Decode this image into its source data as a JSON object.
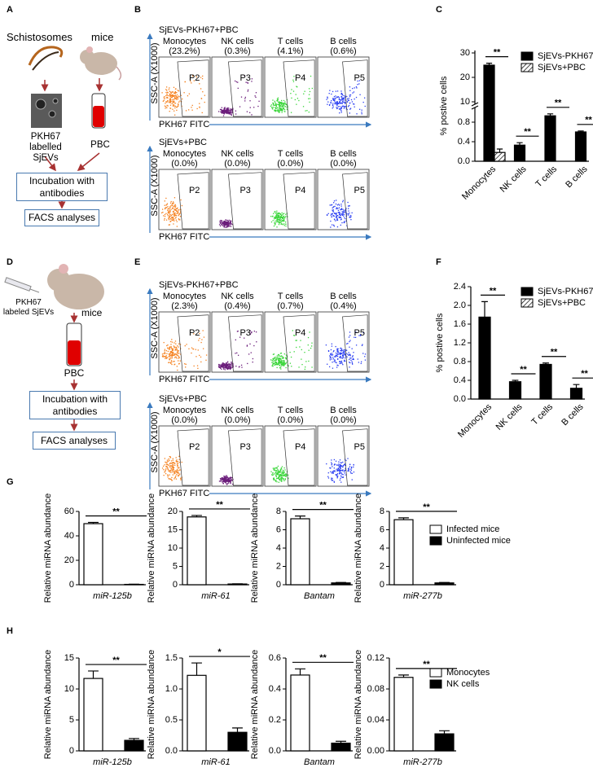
{
  "panel_labels": [
    "A",
    "B",
    "C",
    "D",
    "E",
    "F",
    "G",
    "H"
  ],
  "diagram_a": {
    "schistosomes": "Schistosomes",
    "mice": "mice",
    "evs": "PKH67 labelled SjEVs",
    "pbc": "PBC",
    "step1": "Incubation with antibodies",
    "step2": "FACS analyses"
  },
  "diagram_d": {
    "evs": "PKH67 labeled SjEVs",
    "mice": "mice",
    "pbc": "PBC",
    "step1": "Incubation with antibodies",
    "step2": "FACS analyses"
  },
  "facs_b": {
    "y_axis": "SSC-A (X1000)",
    "x_axis": "PKH67 FITC",
    "cloud_colors": [
      "#f5801e",
      "#6b1d7b",
      "#3ad63a",
      "#2b3ff2"
    ],
    "rows": [
      {
        "title": "SjEVs-PKH67+PBC",
        "plots": [
          {
            "cell": "Monocytes",
            "percent": "(23.2%)",
            "gate": "P2"
          },
          {
            "cell": "NK cells",
            "percent": "(0.3%)",
            "gate": "P3"
          },
          {
            "cell": "T cells",
            "percent": "(4.1%)",
            "gate": "P4"
          },
          {
            "cell": "B cells",
            "percent": "(0.6%)",
            "gate": "P5"
          }
        ]
      },
      {
        "title": "SjEVs+PBC",
        "plots": [
          {
            "cell": "Monocytes",
            "percent": "(0.0%)",
            "gate": "P2"
          },
          {
            "cell": "NK cells",
            "percent": "(0.0%)",
            "gate": "P3"
          },
          {
            "cell": "T cells",
            "percent": "(0.0%)",
            "gate": "P4"
          },
          {
            "cell": "B cells",
            "percent": "(0.0%)",
            "gate": "P5"
          }
        ]
      }
    ]
  },
  "facs_e": {
    "y_axis": "SSC-A (X1000)",
    "x_axis": "PKH67 FITC",
    "cloud_colors": [
      "#f5801e",
      "#6b1d7b",
      "#3ad63a",
      "#2b3ff2"
    ],
    "rows": [
      {
        "title": "SjEVs-PKH67+PBC",
        "plots": [
          {
            "cell": "Monocytes",
            "percent": "(2.3%)",
            "gate": "P2"
          },
          {
            "cell": "NK cells",
            "percent": "(0.4%)",
            "gate": "P3"
          },
          {
            "cell": "T cells",
            "percent": "(0.7%)",
            "gate": "P4"
          },
          {
            "cell": "B cells",
            "percent": "(0.4%)",
            "gate": "P5"
          }
        ]
      },
      {
        "title": "SjEVs+PBC",
        "plots": [
          {
            "cell": "Monocytes",
            "percent": "(0.0%)",
            "gate": "P2"
          },
          {
            "cell": "NK cells",
            "percent": "(0.0%)",
            "gate": "P3"
          },
          {
            "cell": "T cells",
            "percent": "(0.0%)",
            "gate": "P4"
          },
          {
            "cell": "B cells",
            "percent": "(0.0%)",
            "gate": "P5"
          }
        ]
      }
    ]
  },
  "chart_data": [
    {
      "type": "bar",
      "ylabel": "% postive cells",
      "categories": [
        "Monocytes",
        "NK cells",
        "T cells",
        "B cells"
      ],
      "series": [
        {
          "name": "SjEVs-PKH67+PBC",
          "color": "#000000",
          "values": [
            25,
            0.33,
            0.93,
            0.6
          ],
          "errors": [
            0.8,
            0.05,
            0.04,
            0.02
          ]
        },
        {
          "name": "SjEVs+PBC",
          "color": "#ffffff",
          "hatch": true,
          "values": [
            0.18,
            0,
            0,
            0
          ],
          "errors": [
            0.07,
            0,
            0,
            0
          ]
        }
      ],
      "ylim": [
        0,
        31
      ],
      "ybreak": [
        1.1,
        9
      ],
      "yticks": [
        {
          "value": 0,
          "label": "0.0"
        },
        0.4,
        0.8,
        10,
        20,
        30
      ],
      "significance": [
        "**",
        "**",
        "**",
        "**"
      ]
    },
    {
      "type": "bar",
      "ylabel": "% postive cells",
      "categories": [
        "Monocytes",
        "NK cells",
        "T cells",
        "B cells"
      ],
      "series": [
        {
          "name": "SjEVs-PKH67+PBC",
          "color": "#000000",
          "values": [
            1.75,
            0.37,
            0.74,
            0.23
          ],
          "errors": [
            0.33,
            0.03,
            0.03,
            0.08
          ]
        },
        {
          "name": "SjEVs+PBC",
          "color": "#ffffff",
          "hatch": true,
          "values": [
            0,
            0,
            0,
            0
          ],
          "errors": [
            0,
            0,
            0,
            0
          ]
        }
      ],
      "ylim": [
        0,
        2.4
      ],
      "yticks": [
        {
          "value": 0,
          "label": "0.0"
        },
        0.4,
        0.8,
        1.2,
        1.6,
        {
          "value": 2,
          "label": "2.0"
        },
        2.4
      ],
      "significance": [
        "**",
        "**",
        "**",
        "**"
      ]
    },
    {
      "type": "bar",
      "ylabel": "Relative miRNA abundance",
      "series": [
        {
          "name": "Infected mice",
          "color": "#ffffff"
        },
        {
          "name": "Uninfected mice",
          "color": "#000000"
        }
      ],
      "subplots": [
        {
          "category": "miR-125b",
          "values": [
            50,
            0.3
          ],
          "errors": [
            1,
            0.1
          ],
          "ylim": [
            0,
            60
          ],
          "yticks": [
            0,
            20,
            40,
            60
          ],
          "significance": "**"
        },
        {
          "category": "miR-61",
          "values": [
            18.5,
            0.2
          ],
          "errors": [
            0.4,
            0.05
          ],
          "ylim": [
            0,
            20
          ],
          "yticks": [
            0,
            5,
            10,
            15,
            20
          ],
          "significance": "**"
        },
        {
          "category": "Bantam",
          "values": [
            7.2,
            0.2
          ],
          "errors": [
            0.3,
            0.05
          ],
          "ylim": [
            0,
            8
          ],
          "yticks": [
            0,
            2,
            4,
            6,
            8
          ],
          "significance": "**"
        },
        {
          "category": "miR-277b",
          "values": [
            7.1,
            0.2
          ],
          "errors": [
            0.2,
            0.05
          ],
          "ylim": [
            0,
            8
          ],
          "yticks": [
            0,
            2,
            4,
            6,
            8
          ],
          "significance": "**"
        }
      ]
    },
    {
      "type": "bar",
      "ylabel": "Relative miRNA abundance",
      "series": [
        {
          "name": "Monocytes",
          "color": "#ffffff"
        },
        {
          "name": "NK cells",
          "color": "#000000"
        }
      ],
      "subplots": [
        {
          "category": "miR-125b",
          "values": [
            11.7,
            1.7
          ],
          "errors": [
            1.2,
            0.3
          ],
          "ylim": [
            0,
            15
          ],
          "yticks": [
            0,
            5,
            10,
            15
          ],
          "significance": "**"
        },
        {
          "category": "miR-61",
          "values": [
            1.22,
            0.3
          ],
          "errors": [
            0.2,
            0.07
          ],
          "ylim": [
            0,
            1.5
          ],
          "yticks": [
            {
              "value": 0,
              "label": "0.0"
            },
            0.5,
            {
              "value": 1,
              "label": "1.0"
            },
            1.5
          ],
          "significance": "*"
        },
        {
          "category": "Bantam",
          "values": [
            0.49,
            0.05
          ],
          "errors": [
            0.04,
            0.012
          ],
          "ylim": [
            0,
            0.6
          ],
          "yticks": [
            {
              "value": 0,
              "label": "0.0"
            },
            0.2,
            0.4,
            0.6
          ],
          "significance": "**"
        },
        {
          "category": "miR-277b",
          "values": [
            0.095,
            0.022
          ],
          "errors": [
            0.003,
            0.004
          ],
          "ylim": [
            0,
            0.12
          ],
          "yticks": [
            {
              "value": 0,
              "label": "0.00"
            },
            0.04,
            0.08,
            0.12
          ],
          "significance": "**"
        }
      ]
    }
  ]
}
